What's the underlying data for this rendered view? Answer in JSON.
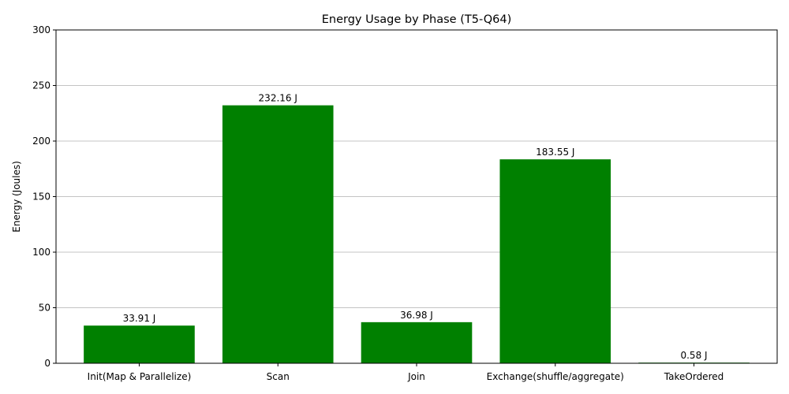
{
  "chart_data": {
    "type": "bar",
    "title": "Energy Usage by Phase (T5-Q64)",
    "xlabel": "",
    "ylabel": "Energy (Joules)",
    "categories": [
      "Init(Map & Parallelize)",
      "Scan",
      "Join",
      "Exchange(shuffle/aggregate)",
      "TakeOrdered"
    ],
    "values": [
      33.91,
      232.16,
      36.98,
      183.55,
      0.58
    ],
    "data_labels": [
      "33.91 J",
      "232.16 J",
      "36.98 J",
      "183.55 J",
      "0.58 J"
    ],
    "ylim": [
      0,
      300
    ],
    "yticks": [
      0,
      50,
      100,
      150,
      200,
      250,
      300
    ],
    "grid": "horizontal",
    "colors": {
      "bar": "#008000",
      "grid": "#b0b0b0",
      "axis": "#000000"
    }
  }
}
